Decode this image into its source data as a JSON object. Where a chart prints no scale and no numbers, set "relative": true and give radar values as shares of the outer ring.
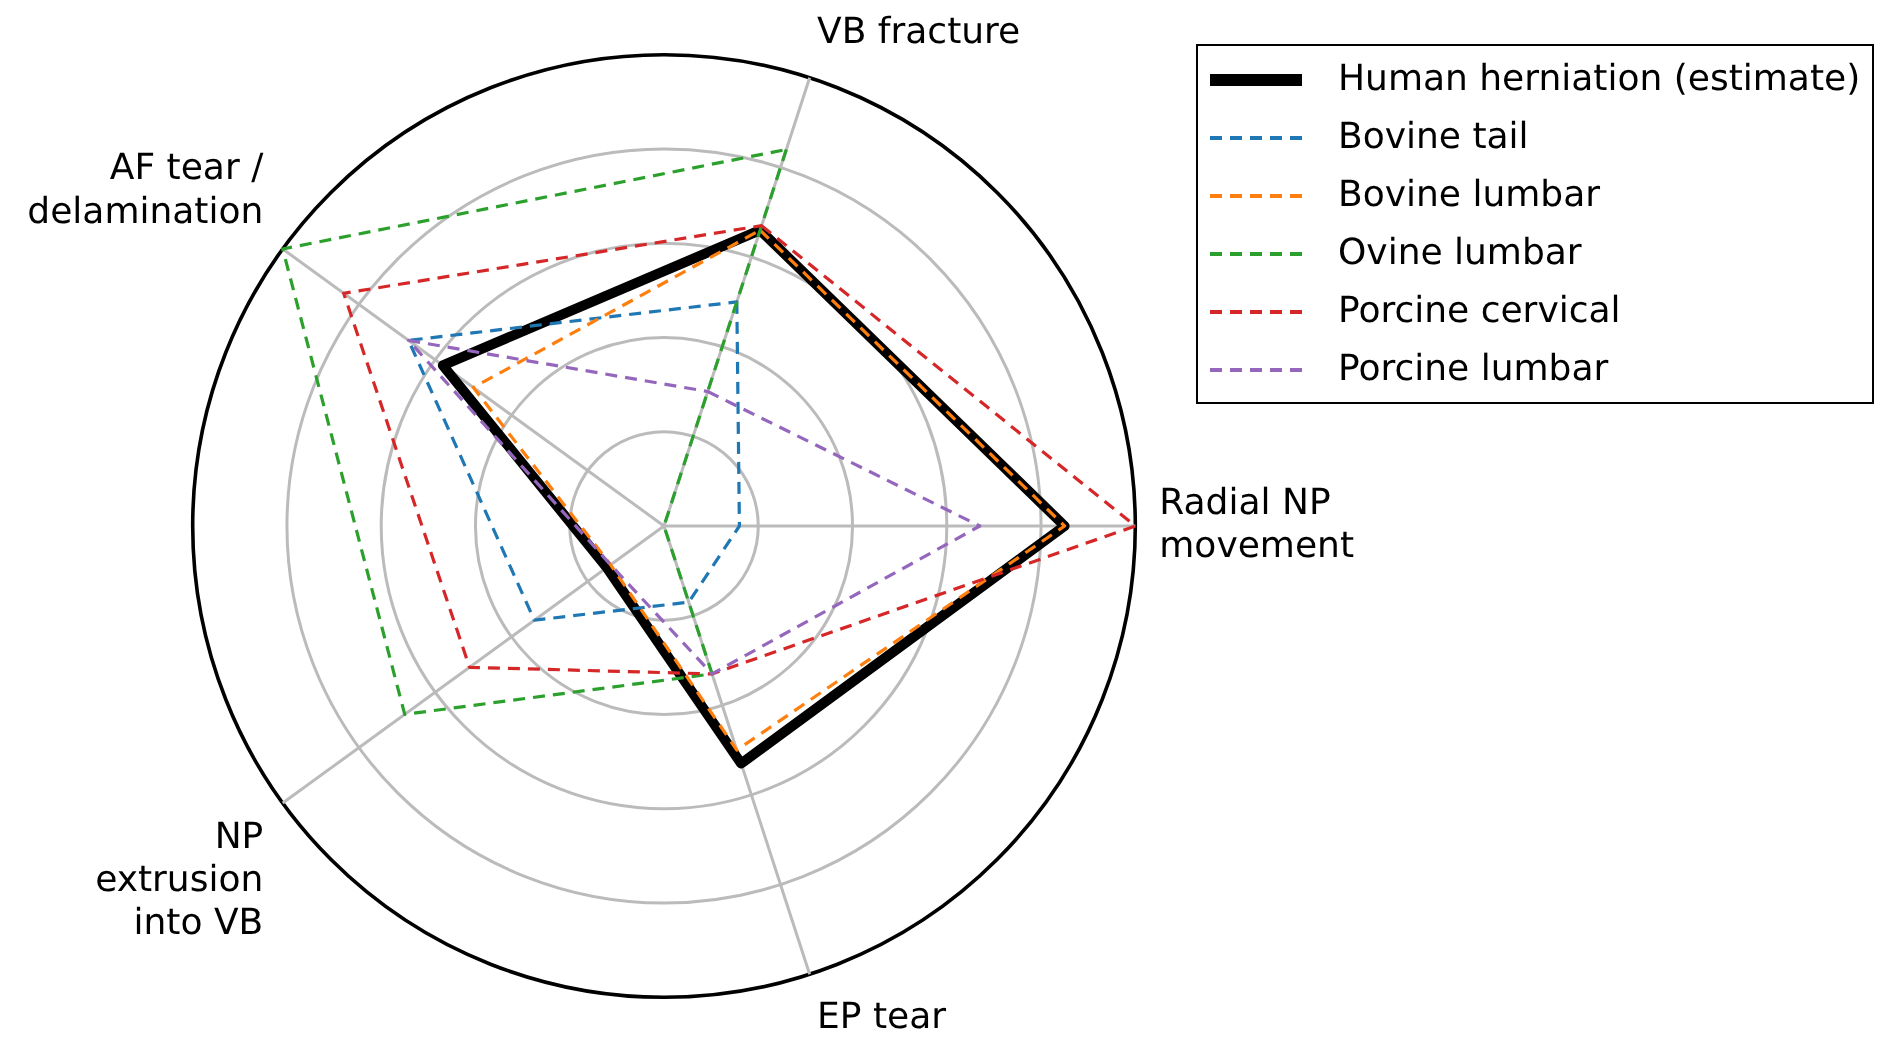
{
  "chart_data": {
    "type": "radar",
    "relative": true,
    "grid": true,
    "legend": "top right",
    "marker": "none",
    "categories": [
      "VB fracture",
      "Radial NP movement",
      "EP tear",
      "NP extrusion into VB",
      "AF tear / delamination"
    ],
    "series": [
      {
        "name": "Human herniation (estimate)",
        "color": "#000000",
        "line_style": "solid",
        "values": [
          0.66,
          0.85,
          0.53,
          0.15,
          0.58
        ]
      },
      {
        "name": "Bovine tail",
        "color": "#1f77b4",
        "line_style": "dashed",
        "values": [
          0.5,
          0.16,
          0.17,
          0.34,
          0.67
        ]
      },
      {
        "name": "Bovine lumbar",
        "color": "#ff7f0e",
        "line_style": "dashed",
        "values": [
          0.66,
          0.85,
          0.5,
          0.14,
          0.5
        ]
      },
      {
        "name": "Ovine lumbar",
        "color": "#2ca02c",
        "line_style": "dashed",
        "values": [
          0.84,
          0,
          0.33,
          0.68,
          1
        ]
      },
      {
        "name": "Porcine cervical",
        "color": "#d62728",
        "line_style": "dashed",
        "values": [
          0.67,
          1,
          0.33,
          0.51,
          0.84
        ]
      },
      {
        "name": "Porcine lumbar",
        "color": "#9467bd",
        "line_style": "dashed",
        "values": [
          0.3,
          0.67,
          0.33,
          0.14,
          0.67
        ]
      }
    ]
  }
}
